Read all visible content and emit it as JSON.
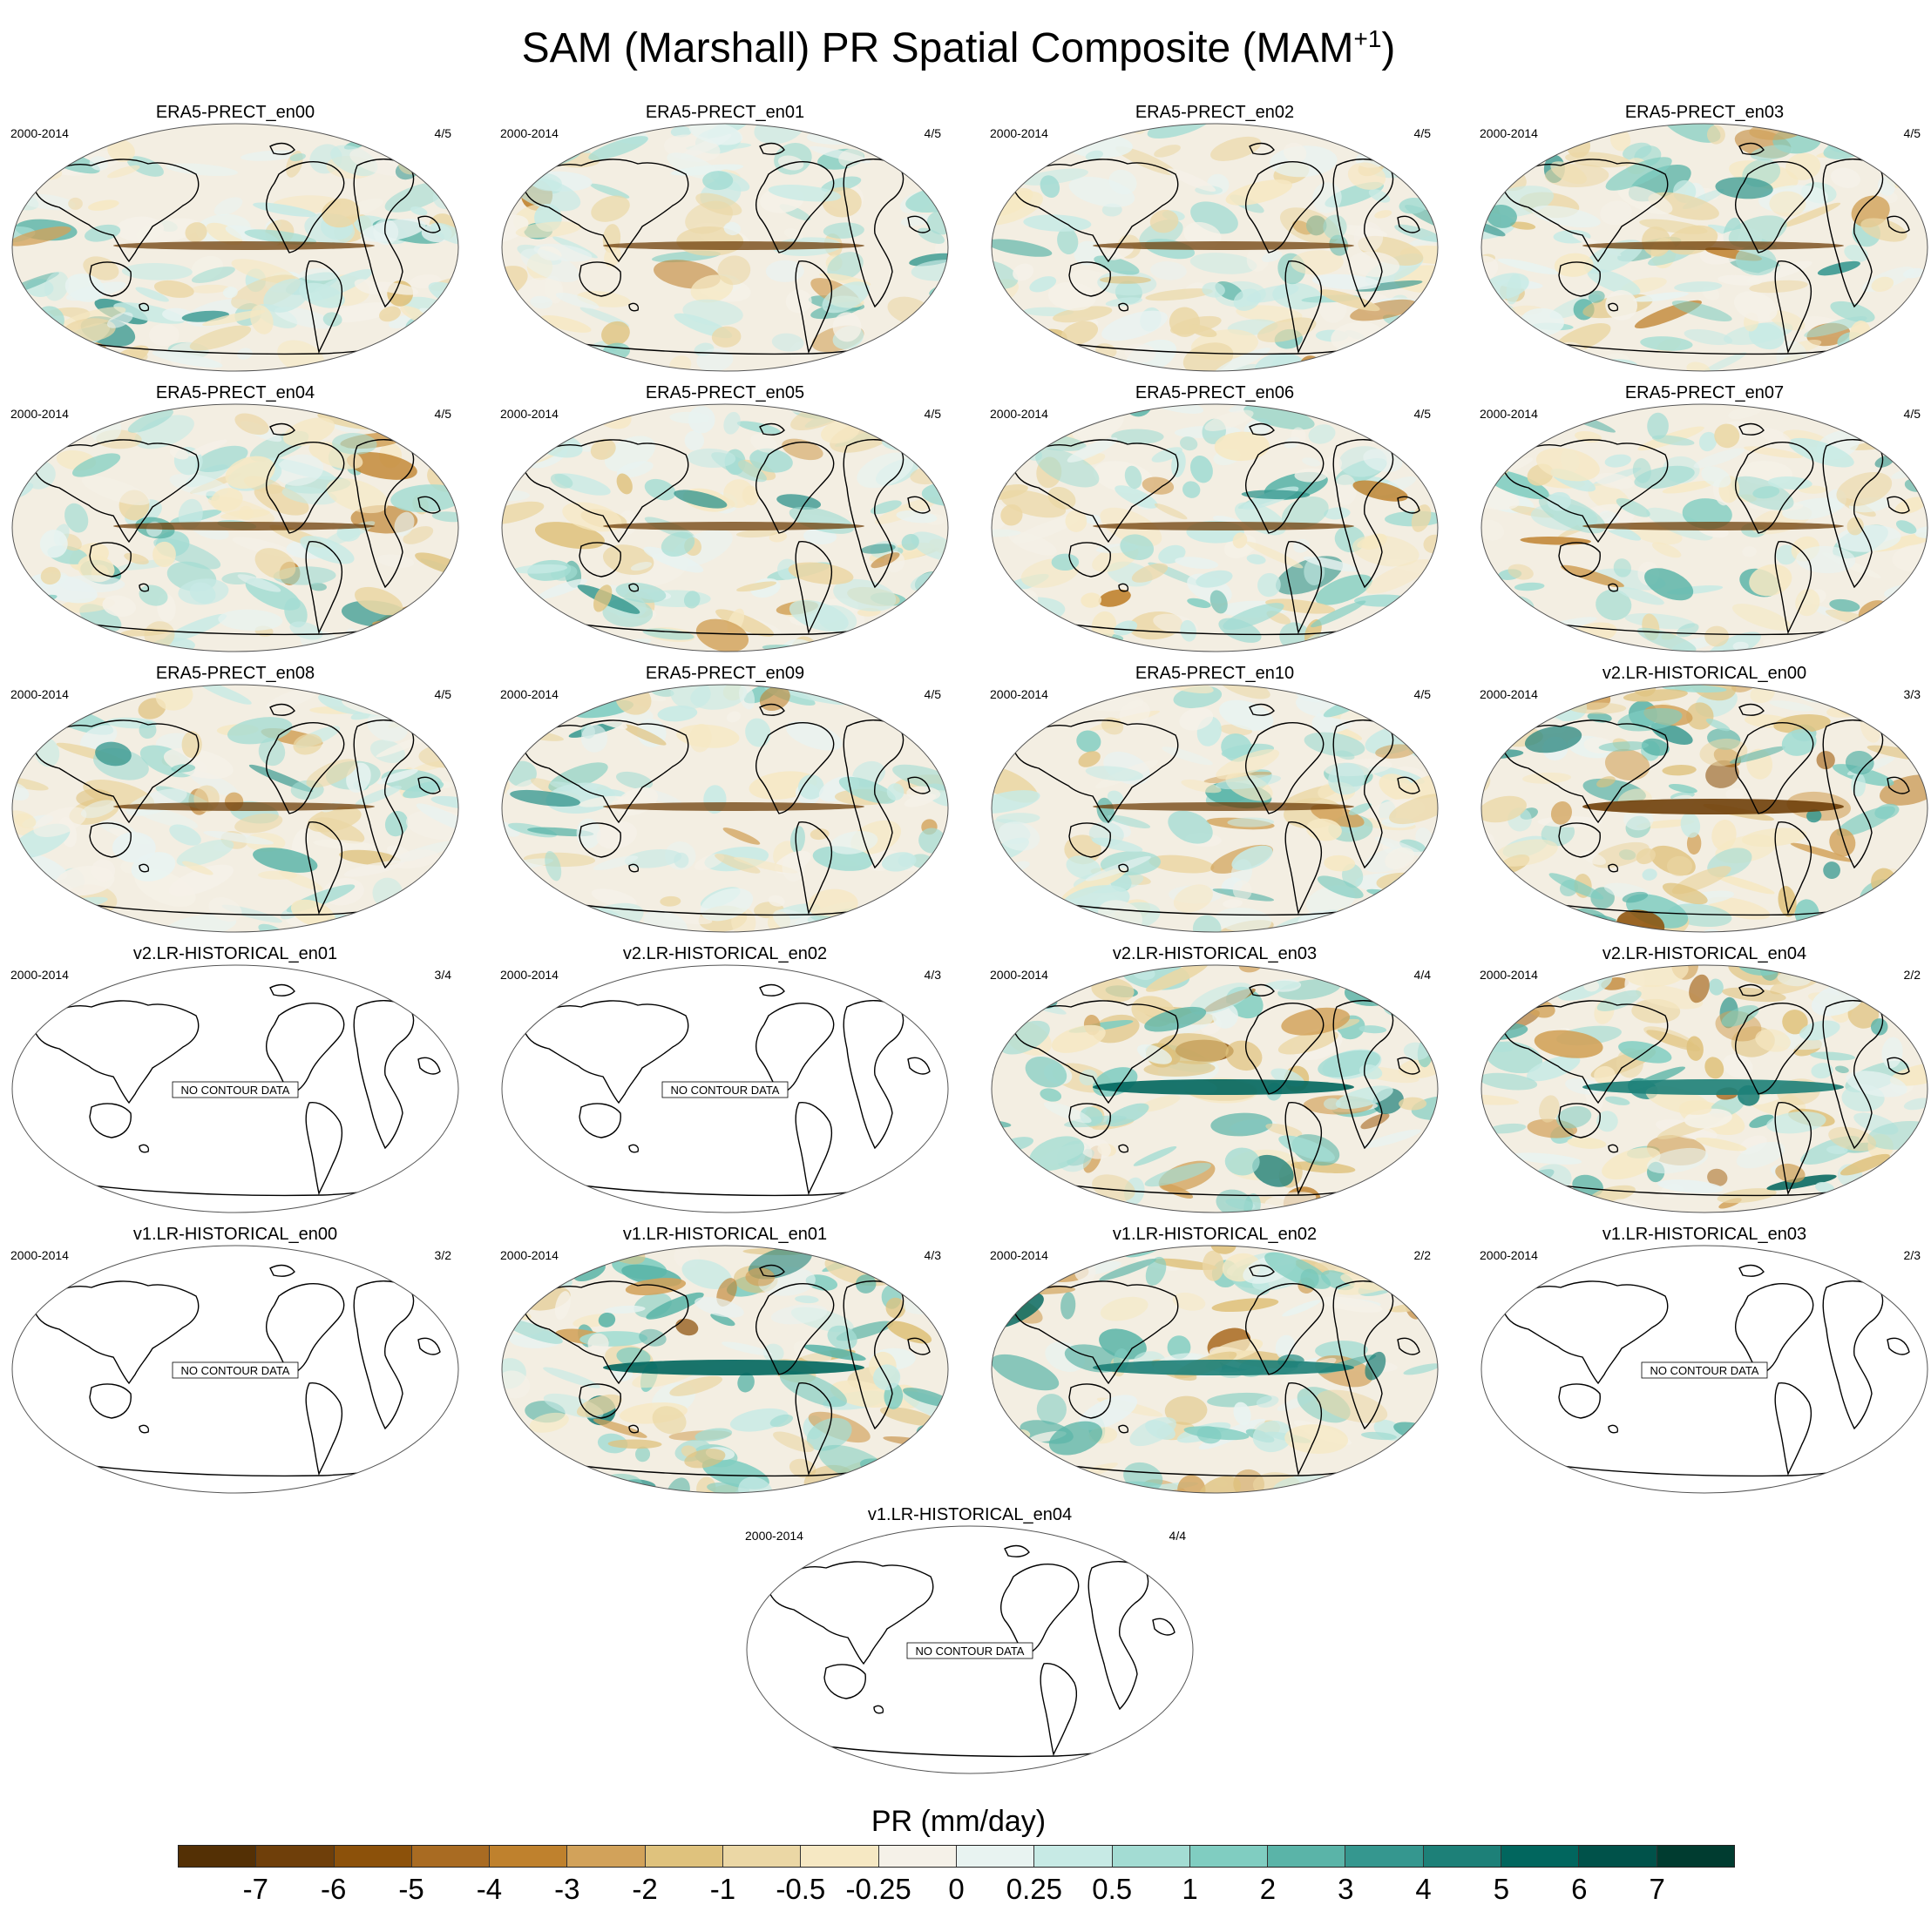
{
  "figure": {
    "title_main": "SAM (Marshall) PR Spatial Composite (MAM",
    "title_sup": "+1",
    "title_end": ")"
  },
  "panels": [
    {
      "name": "ERA5-PRECT_en00",
      "period": "2000-2014",
      "count": "4/5",
      "has_data": true,
      "style": "era5"
    },
    {
      "name": "ERA5-PRECT_en01",
      "period": "2000-2014",
      "count": "4/5",
      "has_data": true,
      "style": "era5"
    },
    {
      "name": "ERA5-PRECT_en02",
      "period": "2000-2014",
      "count": "4/5",
      "has_data": true,
      "style": "era5"
    },
    {
      "name": "ERA5-PRECT_en03",
      "period": "2000-2014",
      "count": "4/5",
      "has_data": true,
      "style": "era5"
    },
    {
      "name": "ERA5-PRECT_en04",
      "period": "2000-2014",
      "count": "4/5",
      "has_data": true,
      "style": "era5"
    },
    {
      "name": "ERA5-PRECT_en05",
      "period": "2000-2014",
      "count": "4/5",
      "has_data": true,
      "style": "era5"
    },
    {
      "name": "ERA5-PRECT_en06",
      "period": "2000-2014",
      "count": "4/5",
      "has_data": true,
      "style": "era5"
    },
    {
      "name": "ERA5-PRECT_en07",
      "period": "2000-2014",
      "count": "4/5",
      "has_data": true,
      "style": "era5"
    },
    {
      "name": "ERA5-PRECT_en08",
      "period": "2000-2014",
      "count": "4/5",
      "has_data": true,
      "style": "era5"
    },
    {
      "name": "ERA5-PRECT_en09",
      "period": "2000-2014",
      "count": "4/5",
      "has_data": true,
      "style": "era5"
    },
    {
      "name": "ERA5-PRECT_en10",
      "period": "2000-2014",
      "count": "4/5",
      "has_data": true,
      "style": "era5"
    },
    {
      "name": "v2.LR-HISTORICAL_en00",
      "period": "2000-2014",
      "count": "3/3",
      "has_data": true,
      "style": "model-dry"
    },
    {
      "name": "v2.LR-HISTORICAL_en01",
      "period": "2000-2014",
      "count": "3/4",
      "has_data": false,
      "no_data_label": "NO CONTOUR DATA"
    },
    {
      "name": "v2.LR-HISTORICAL_en02",
      "period": "2000-2014",
      "count": "4/3",
      "has_data": false,
      "no_data_label": "NO CONTOUR DATA"
    },
    {
      "name": "v2.LR-HISTORICAL_en03",
      "period": "2000-2014",
      "count": "4/4",
      "has_data": true,
      "style": "model-wet"
    },
    {
      "name": "v2.LR-HISTORICAL_en04",
      "period": "2000-2014",
      "count": "2/2",
      "has_data": true,
      "style": "model-mixed"
    },
    {
      "name": "v1.LR-HISTORICAL_en00",
      "period": "2000-2014",
      "count": "3/2",
      "has_data": false,
      "no_data_label": "NO CONTOUR DATA"
    },
    {
      "name": "v1.LR-HISTORICAL_en01",
      "period": "2000-2014",
      "count": "4/3",
      "has_data": true,
      "style": "model-wet"
    },
    {
      "name": "v1.LR-HISTORICAL_en02",
      "period": "2000-2014",
      "count": "2/2",
      "has_data": true,
      "style": "model-mixed"
    },
    {
      "name": "v1.LR-HISTORICAL_en03",
      "period": "2000-2014",
      "count": "2/3",
      "has_data": false,
      "no_data_label": "NO CONTOUR DATA"
    },
    {
      "name": "v1.LR-HISTORICAL_en04",
      "period": "2000-2014",
      "count": "4/4",
      "has_data": false,
      "no_data_label": "NO CONTOUR DATA"
    }
  ],
  "colorbar": {
    "title": "PR (mm/day)",
    "labels": [
      "-7",
      "-6",
      "-5",
      "-4",
      "-3",
      "-2",
      "-1",
      "-0.5",
      "-0.25",
      "0",
      "0.25",
      "0.5",
      "1",
      "2",
      "3",
      "4",
      "5",
      "6",
      "7"
    ],
    "colors": [
      "#543005",
      "#6f3f0a",
      "#8c510a",
      "#a96b22",
      "#bf812d",
      "#d2a25a",
      "#dfc27d",
      "#ebd7a5",
      "#f6e8c3",
      "#f5f1e8",
      "#e8f3f1",
      "#c7eae5",
      "#a3dcd3",
      "#80cdc1",
      "#5ab4a8",
      "#35978f",
      "#1d8078",
      "#01665e",
      "#00524a",
      "#003c30"
    ]
  }
}
